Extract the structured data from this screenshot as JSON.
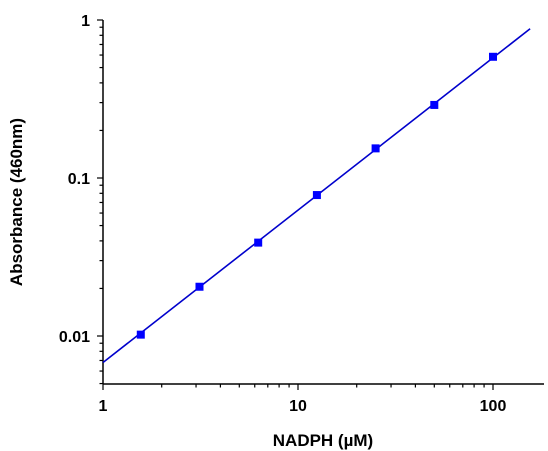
{
  "chart_data": {
    "type": "scatter",
    "title": "",
    "xlabel": "NADPH (µM)",
    "ylabel": "Absorbance (460nm)",
    "x_scale": "log",
    "y_scale": "log",
    "xlim": [
      1,
      160
    ],
    "ylim": [
      0.005,
      1
    ],
    "x_ticks": [
      {
        "value": 1,
        "label": "1"
      },
      {
        "value": 10,
        "label": "10"
      },
      {
        "value": 100,
        "label": "100"
      }
    ],
    "y_ticks": [
      {
        "value": 0.01,
        "label": "0.01"
      },
      {
        "value": 0.1,
        "label": "0.1"
      },
      {
        "value": 1,
        "label": "1"
      }
    ],
    "grid": false,
    "legend": "none",
    "series": [
      {
        "x": [
          1.5625,
          3.125,
          6.25,
          12.5,
          25,
          50,
          100
        ],
        "y": [
          0.0102,
          0.0205,
          0.039,
          0.078,
          0.154,
          0.29,
          0.585
        ],
        "color": "#0000ff",
        "marker": "square"
      }
    ],
    "fit_line": {
      "x": [
        1,
        155
      ],
      "y": [
        0.0068,
        0.88
      ],
      "color": "#0000cc"
    }
  }
}
